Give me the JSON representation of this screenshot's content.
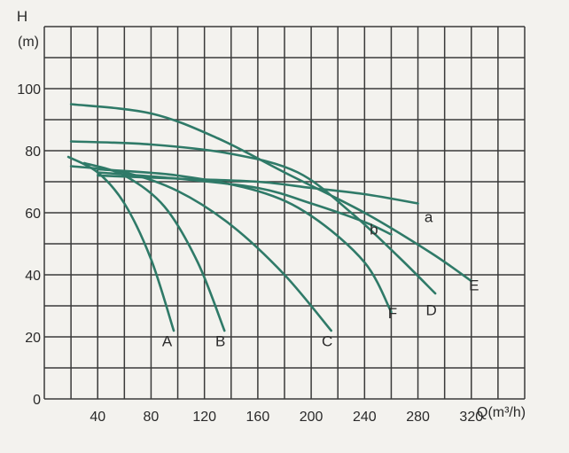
{
  "chart_data": {
    "type": "line",
    "title": "",
    "ylabel_line1": "H",
    "ylabel_line2": "(m)",
    "xlabel": "Q(m³/h)",
    "xlim": [
      0,
      360
    ],
    "ylim": [
      0,
      120
    ],
    "x_tick_labels": [
      "40",
      "80",
      "120",
      "160",
      "200",
      "240",
      "280",
      "320"
    ],
    "y_tick_labels": [
      "0",
      "20",
      "40",
      "60",
      "80",
      "100"
    ],
    "grid": true,
    "curve_color": "#2f7a68",
    "grid_color": "#3a3a3a",
    "series": [
      {
        "name": "A",
        "points": [
          [
            18,
            78
          ],
          [
            40,
            73
          ],
          [
            60,
            63
          ],
          [
            80,
            45
          ],
          [
            97,
            22
          ]
        ]
      },
      {
        "name": "B",
        "points": [
          [
            30,
            76
          ],
          [
            60,
            72
          ],
          [
            90,
            62
          ],
          [
            115,
            44
          ],
          [
            135,
            22
          ]
        ]
      },
      {
        "name": "C",
        "points": [
          [
            20,
            75
          ],
          [
            60,
            73
          ],
          [
            100,
            67
          ],
          [
            140,
            56
          ],
          [
            180,
            40
          ],
          [
            215,
            22
          ]
        ]
      },
      {
        "name": "F",
        "points": [
          [
            40,
            74
          ],
          [
            100,
            72
          ],
          [
            160,
            67
          ],
          [
            200,
            59
          ],
          [
            240,
            44
          ],
          [
            260,
            28
          ]
        ]
      },
      {
        "name": "D",
        "points": [
          [
            20,
            83
          ],
          [
            80,
            82
          ],
          [
            140,
            79
          ],
          [
            190,
            73
          ],
          [
            230,
            60
          ],
          [
            265,
            46
          ],
          [
            293,
            34
          ]
        ]
      },
      {
        "name": "E",
        "points": [
          [
            20,
            95
          ],
          [
            80,
            92
          ],
          [
            130,
            84
          ],
          [
            180,
            73
          ],
          [
            240,
            60
          ],
          [
            290,
            47
          ],
          [
            320,
            38
          ]
        ]
      },
      {
        "name": "a",
        "points": [
          [
            40,
            72
          ],
          [
            100,
            71
          ],
          [
            160,
            70
          ],
          [
            200,
            68
          ],
          [
            240,
            66
          ],
          [
            280,
            63
          ]
        ]
      },
      {
        "name": "b",
        "points": [
          [
            40,
            73
          ],
          [
            100,
            71
          ],
          [
            160,
            68
          ],
          [
            200,
            63
          ],
          [
            240,
            57
          ],
          [
            260,
            53
          ]
        ]
      }
    ],
    "curve_labels": [
      {
        "text": "A",
        "x": 92,
        "y": 17
      },
      {
        "text": "B",
        "x": 132,
        "y": 17
      },
      {
        "text": "C",
        "x": 212,
        "y": 17
      },
      {
        "text": "F",
        "x": 261,
        "y": 26
      },
      {
        "text": "D",
        "x": 290,
        "y": 27
      },
      {
        "text": "E",
        "x": 322,
        "y": 35
      },
      {
        "text": "b",
        "x": 247,
        "y": 53
      },
      {
        "text": "a",
        "x": 288,
        "y": 57
      }
    ]
  }
}
